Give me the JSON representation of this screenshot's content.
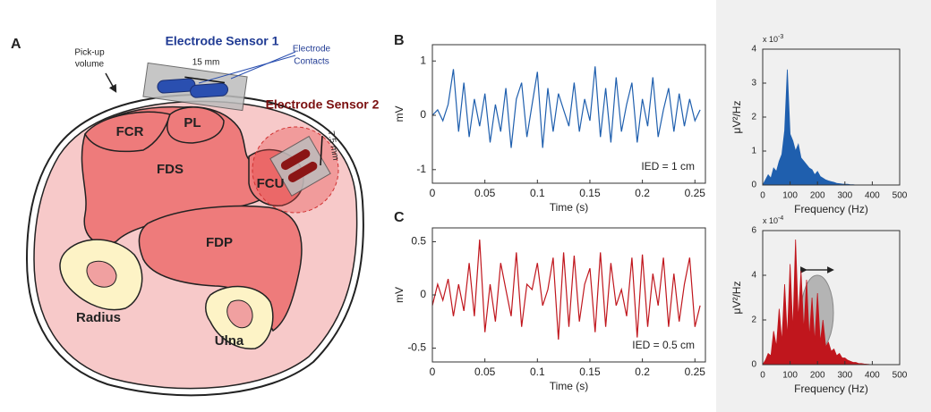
{
  "panels": {
    "a": "A",
    "b": "B",
    "c": "C"
  },
  "diagram": {
    "sensor1": "Electrode Sensor 1",
    "sensor2": "Electrode Sensor 2",
    "pickup": [
      "Pick-up",
      "volume"
    ],
    "contacts": [
      "Electrode",
      "Contacts"
    ],
    "distance1": "15 mm",
    "distance2": "7.5 mm",
    "muscles": [
      "FCR",
      "PL",
      "FDS",
      "FCU",
      "FDP"
    ],
    "bones": [
      "Radius",
      "Ulna"
    ]
  },
  "chart_data": [
    {
      "type": "line",
      "xlabel": "Time (s)",
      "ylabel": "mV",
      "annotation": "IED = 1 cm",
      "color": "#1f5fae",
      "x": [
        0,
        0.005,
        0.01,
        0.015,
        0.02,
        0.025,
        0.03,
        0.035,
        0.04,
        0.045,
        0.05,
        0.055,
        0.06,
        0.065,
        0.07,
        0.075,
        0.08,
        0.085,
        0.09,
        0.095,
        0.1,
        0.105,
        0.11,
        0.115,
        0.12,
        0.125,
        0.13,
        0.135,
        0.14,
        0.145,
        0.15,
        0.155,
        0.16,
        0.165,
        0.17,
        0.175,
        0.18,
        0.185,
        0.19,
        0.195,
        0.2,
        0.205,
        0.21,
        0.215,
        0.22,
        0.225,
        0.23,
        0.235,
        0.24,
        0.245,
        0.25,
        0.255
      ],
      "values": [
        0,
        0.1,
        -0.1,
        0.2,
        0.85,
        -0.3,
        0.6,
        -0.4,
        0.3,
        -0.2,
        0.4,
        -0.5,
        0.2,
        -0.3,
        0.5,
        -0.6,
        0.3,
        0.6,
        -0.4,
        0.2,
        0.8,
        -0.6,
        0.5,
        -0.3,
        0.4,
        0.1,
        -0.2,
        0.6,
        -0.3,
        0.3,
        -0.1,
        0.9,
        -0.4,
        0.5,
        -0.5,
        0.7,
        -0.3,
        0.2,
        0.6,
        -0.5,
        0.3,
        -0.2,
        0.7,
        -0.4,
        0.1,
        0.5,
        -0.3,
        0.4,
        -0.2,
        0.3,
        -0.1,
        0.1
      ],
      "xlim": [
        0,
        0.26
      ],
      "ylim": [
        -1.25,
        1.3
      ],
      "xticks": [
        0,
        0.05,
        0.1,
        0.15,
        0.2,
        0.25
      ],
      "yticks": [
        -1,
        0,
        1
      ]
    },
    {
      "type": "area",
      "xlabel": "Frequency (Hz)",
      "ylabel": "μV²/Hz",
      "y_multiplier": {
        "base": "x 10",
        "exponent": "-3"
      },
      "color": "#1f5fae",
      "x": [
        0,
        10,
        20,
        30,
        40,
        50,
        60,
        70,
        80,
        90,
        100,
        110,
        120,
        130,
        140,
        150,
        160,
        170,
        180,
        190,
        200,
        210,
        220,
        230,
        240,
        250,
        260,
        270,
        280,
        290,
        300,
        310,
        320,
        330,
        340,
        350,
        360,
        370,
        380,
        390,
        400,
        410,
        420,
        430,
        440,
        450,
        460,
        470,
        480,
        490,
        500
      ],
      "values": [
        0,
        0.15,
        0.3,
        0.2,
        0.5,
        0.4,
        0.7,
        0.9,
        1.6,
        3.4,
        1.5,
        1.3,
        1.0,
        1.2,
        0.8,
        0.7,
        0.6,
        0.5,
        0.45,
        0.3,
        0.4,
        0.25,
        0.2,
        0.15,
        0.12,
        0.1,
        0.08,
        0.05,
        0.04,
        0.03,
        0.02,
        0.02,
        0.01,
        0.01,
        0,
        0,
        0,
        0,
        0,
        0,
        0,
        0,
        0,
        0,
        0,
        0,
        0,
        0,
        0,
        0,
        0
      ],
      "xlim": [
        0,
        500
      ],
      "ylim": [
        0,
        4
      ],
      "xticks": [
        0,
        100,
        200,
        300,
        400,
        500
      ],
      "yticks": [
        0,
        1,
        2,
        3,
        4
      ]
    },
    {
      "type": "line",
      "xlabel": "Time (s)",
      "ylabel": "mV",
      "annotation": "IED = 0.5 cm",
      "color": "#c0161d",
      "x": [
        0,
        0.005,
        0.01,
        0.015,
        0.02,
        0.025,
        0.03,
        0.035,
        0.04,
        0.045,
        0.05,
        0.055,
        0.06,
        0.065,
        0.07,
        0.075,
        0.08,
        0.085,
        0.09,
        0.095,
        0.1,
        0.105,
        0.11,
        0.115,
        0.12,
        0.125,
        0.13,
        0.135,
        0.14,
        0.145,
        0.15,
        0.155,
        0.16,
        0.165,
        0.17,
        0.175,
        0.18,
        0.185,
        0.19,
        0.195,
        0.2,
        0.205,
        0.21,
        0.215,
        0.22,
        0.225,
        0.23,
        0.235,
        0.24,
        0.245,
        0.25,
        0.255
      ],
      "values": [
        -0.1,
        0.1,
        -0.05,
        0.15,
        -0.2,
        0.1,
        -0.15,
        0.3,
        -0.2,
        0.52,
        -0.35,
        0.1,
        -0.25,
        0.3,
        0.05,
        -0.2,
        0.4,
        -0.3,
        0.1,
        0.05,
        0.3,
        -0.1,
        0.05,
        0.35,
        -0.42,
        0.4,
        -0.3,
        0.37,
        -0.25,
        0.1,
        0.25,
        -0.35,
        0.4,
        -0.3,
        0.3,
        -0.1,
        0.05,
        -0.2,
        0.35,
        -0.4,
        0.38,
        -0.3,
        0.2,
        -0.1,
        0.35,
        -0.3,
        0.2,
        -0.25,
        0.1,
        0.35,
        -0.3,
        -0.1
      ],
      "xlim": [
        0,
        0.26
      ],
      "ylim": [
        -0.63,
        0.63
      ],
      "xticks": [
        0,
        0.05,
        0.1,
        0.15,
        0.2,
        0.25
      ],
      "yticks": [
        -0.5,
        0,
        0.5
      ]
    },
    {
      "type": "area",
      "xlabel": "Frequency (Hz)",
      "ylabel": "μV²/Hz",
      "y_multiplier": {
        "base": "x 10",
        "exponent": "-4"
      },
      "color": "#c0161d",
      "x": [
        0,
        10,
        20,
        30,
        40,
        50,
        60,
        70,
        80,
        90,
        100,
        110,
        120,
        130,
        140,
        150,
        160,
        170,
        180,
        190,
        200,
        210,
        220,
        230,
        240,
        250,
        260,
        270,
        280,
        290,
        300,
        310,
        320,
        330,
        340,
        350,
        360,
        370,
        380,
        390,
        400,
        410,
        420,
        430,
        440,
        450,
        460,
        470,
        480,
        490,
        500
      ],
      "values": [
        0,
        0.2,
        0.5,
        0.4,
        1.5,
        0.8,
        2.5,
        1.0,
        3.6,
        1.2,
        4.5,
        1.5,
        5.6,
        2.0,
        4.2,
        1.5,
        3.8,
        1.2,
        3.0,
        1.0,
        3.2,
        1.0,
        2.0,
        0.8,
        1.0,
        0.6,
        0.7,
        0.4,
        0.5,
        0.3,
        0.3,
        0.2,
        0.15,
        0.1,
        0.1,
        0.05,
        0.05,
        0.03,
        0.02,
        0.01,
        0,
        0,
        0,
        0,
        0,
        0,
        0,
        0,
        0,
        0,
        0
      ],
      "xlim": [
        0,
        500
      ],
      "ylim": [
        0,
        6
      ],
      "xticks": [
        0,
        100,
        200,
        300,
        400,
        500
      ],
      "yticks": [
        0,
        2,
        4,
        6
      ]
    }
  ]
}
